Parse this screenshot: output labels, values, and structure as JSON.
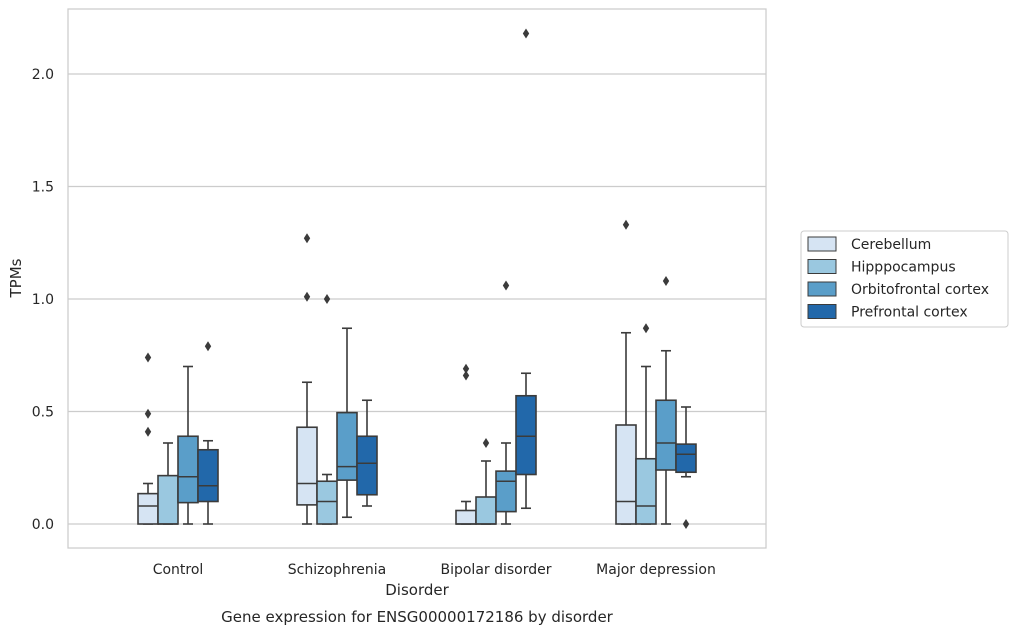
{
  "chart_data": {
    "type": "box",
    "title": "",
    "caption": "Gene expression for ENSG00000172186 by disorder",
    "xlabel": "Disorder",
    "ylabel": "TPMs",
    "ylim": [
      -0.11,
      2.31
    ],
    "yticks": [
      "0.0",
      "0.5",
      "1.0",
      "1.5",
      "2.0"
    ],
    "ytick_values": [
      0.0,
      0.5,
      1.0,
      1.5,
      2.0
    ],
    "grid": "horizontal",
    "legend_position": "right",
    "categories": [
      "Control",
      "Schizophrenia",
      "Bipolar disorder",
      "Major depression"
    ],
    "series": [
      {
        "name": "Cerebellum",
        "color": "#d6e4f3",
        "boxes": [
          {
            "whislo": 0.0,
            "q1": 0.0,
            "med": 0.08,
            "q3": 0.135,
            "whishi": 0.18,
            "fliers": [
              0.41,
              0.49,
              0.74
            ]
          },
          {
            "whislo": 0.0,
            "q1": 0.085,
            "med": 0.18,
            "q3": 0.43,
            "whishi": 0.63,
            "fliers": [
              1.01,
              1.27
            ]
          },
          {
            "whislo": 0.0,
            "q1": 0.0,
            "med": 0.0,
            "q3": 0.06,
            "whishi": 0.1,
            "fliers": [
              0.66,
              0.69
            ]
          },
          {
            "whislo": 0.0,
            "q1": 0.0,
            "med": 0.1,
            "q3": 0.44,
            "whishi": 0.85,
            "fliers": [
              1.33
            ]
          }
        ]
      },
      {
        "name": "Hipppocampus",
        "color": "#9ac8e0",
        "boxes": [
          {
            "whislo": 0.0,
            "q1": 0.0,
            "med": 0.0,
            "q3": 0.215,
            "whishi": 0.36,
            "fliers": []
          },
          {
            "whislo": 0.0,
            "q1": 0.0,
            "med": 0.1,
            "q3": 0.19,
            "whishi": 0.22,
            "fliers": [
              1.0
            ]
          },
          {
            "whislo": 0.0,
            "q1": 0.0,
            "med": 0.0,
            "q3": 0.12,
            "whishi": 0.28,
            "fliers": [
              0.36
            ]
          },
          {
            "whislo": 0.0,
            "q1": 0.0,
            "med": 0.08,
            "q3": 0.29,
            "whishi": 0.7,
            "fliers": [
              0.87
            ]
          }
        ]
      },
      {
        "name": "Orbitofrontal cortex",
        "color": "#5a9ec9",
        "boxes": [
          {
            "whislo": 0.0,
            "q1": 0.095,
            "med": 0.21,
            "q3": 0.39,
            "whishi": 0.7,
            "fliers": []
          },
          {
            "whislo": 0.03,
            "q1": 0.195,
            "med": 0.255,
            "q3": 0.495,
            "whishi": 0.87,
            "fliers": []
          },
          {
            "whislo": 0.0,
            "q1": 0.055,
            "med": 0.19,
            "q3": 0.235,
            "whishi": 0.36,
            "fliers": [
              1.06
            ]
          },
          {
            "whislo": 0.0,
            "q1": 0.24,
            "med": 0.36,
            "q3": 0.55,
            "whishi": 0.77,
            "fliers": [
              1.08
            ]
          }
        ]
      },
      {
        "name": "Prefrontal cortex",
        "color": "#2268aa",
        "boxes": [
          {
            "whislo": 0.0,
            "q1": 0.1,
            "med": 0.17,
            "q3": 0.33,
            "whishi": 0.37,
            "fliers": [
              0.79
            ]
          },
          {
            "whislo": 0.08,
            "q1": 0.13,
            "med": 0.27,
            "q3": 0.39,
            "whishi": 0.55,
            "fliers": []
          },
          {
            "whislo": 0.07,
            "q1": 0.22,
            "med": 0.39,
            "q3": 0.57,
            "whishi": 0.67,
            "fliers": [
              2.18
            ]
          },
          {
            "whislo": 0.21,
            "q1": 0.23,
            "med": 0.31,
            "q3": 0.355,
            "whishi": 0.52,
            "fliers": [
              0.0
            ]
          }
        ]
      }
    ]
  }
}
